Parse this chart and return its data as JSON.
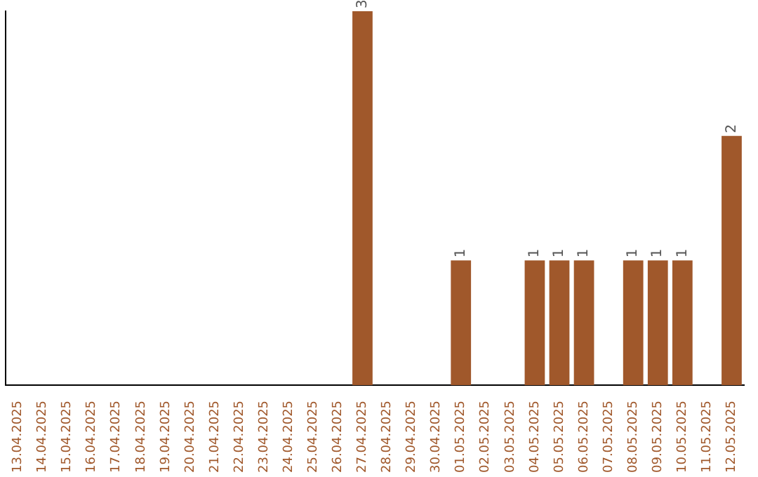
{
  "chart_data": {
    "type": "bar",
    "categories": [
      "13.04.2025",
      "14.04.2025",
      "15.04.2025",
      "16.04.2025",
      "17.04.2025",
      "18.04.2025",
      "19.04.2025",
      "20.04.2025",
      "21.04.2025",
      "22.04.2025",
      "23.04.2025",
      "24.04.2025",
      "25.04.2025",
      "26.04.2025",
      "27.04.2025",
      "28.04.2025",
      "29.04.2025",
      "30.04.2025",
      "01.05.2025",
      "02.05.2025",
      "03.05.2025",
      "04.05.2025",
      "05.05.2025",
      "06.05.2025",
      "07.05.2025",
      "08.05.2025",
      "09.05.2025",
      "10.05.2025",
      "11.05.2025",
      "12.05.2025"
    ],
    "values": [
      null,
      null,
      null,
      null,
      null,
      null,
      null,
      null,
      null,
      null,
      null,
      null,
      null,
      null,
      3,
      null,
      null,
      null,
      1,
      null,
      null,
      1,
      1,
      1,
      null,
      1,
      1,
      1,
      null,
      2
    ],
    "color": "#a0582b",
    "grid": false,
    "legend": false,
    "tick_labels": "x",
    "data_labels": true
  }
}
